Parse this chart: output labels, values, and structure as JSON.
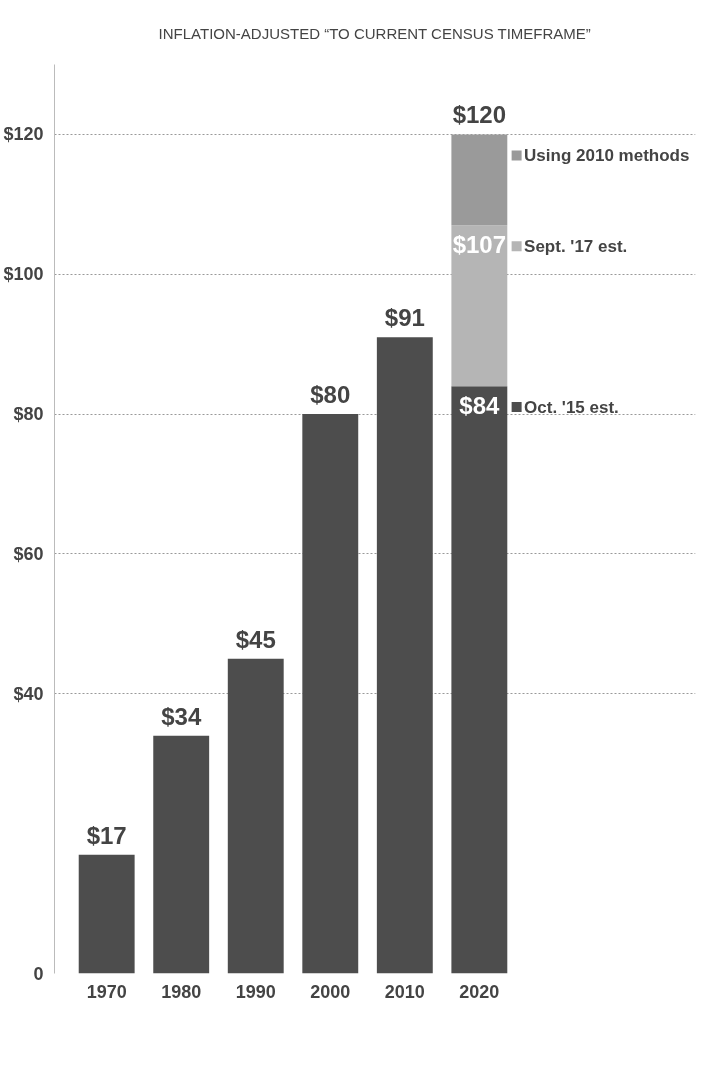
{
  "chart_data": {
    "type": "bar",
    "subtitle": "INFLATION-ADJUSTED “TO CURRENT CENSUS TIMEFRAME”",
    "categories": [
      "1970",
      "1980",
      "1990",
      "2000",
      "2010",
      "2020"
    ],
    "stacked": true,
    "series": [
      {
        "name": "Oct. '15 est.",
        "color": "#4d4d4d",
        "values": [
          17,
          34,
          45,
          80,
          91,
          84
        ],
        "value_labels": [
          "$17",
          "$34",
          "$45",
          "$80",
          "$91",
          "$84"
        ]
      },
      {
        "name": "Sept. '17 est.",
        "color": "#b5b5b5",
        "values": [
          null,
          null,
          null,
          null,
          null,
          23
        ]
      },
      {
        "name": "Using 2010 methods",
        "color": "#9a9a9a",
        "values": [
          null,
          null,
          null,
          null,
          null,
          13
        ]
      }
    ],
    "totals": [
      null,
      null,
      null,
      null,
      null,
      "$120"
    ],
    "annotations": [
      {
        "text": "$107",
        "x": "2020",
        "y": 107
      }
    ],
    "ylim": [
      0,
      130
    ],
    "yticks": [
      0,
      {
        "value": 40,
        "label": "$40"
      },
      {
        "value": 60,
        "label": "$60"
      },
      {
        "value": 80,
        "label": "$80"
      },
      {
        "value": 100,
        "label": "$100"
      },
      {
        "value": 120,
        "label": "$120"
      }
    ],
    "grid": "y",
    "legend": "right"
  }
}
